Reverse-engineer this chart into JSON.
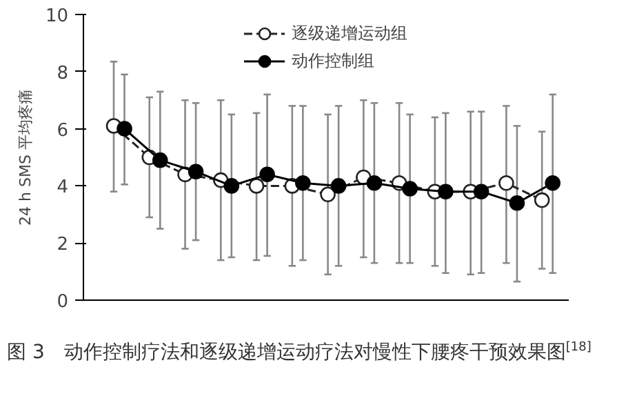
{
  "chart_data": {
    "type": "line",
    "title": "图 3　动作控制疗法和逐级递增运动疗法对慢性下腰疼干预效果图$^{[18]}$",
    "ylabel": "24 h SMS 平均疼痛",
    "categories": [
      null,
      null,
      null,
      null,
      null,
      null,
      null,
      null,
      null,
      null,
      null,
      null,
      null
    ],
    "ylim": [
      0,
      10
    ],
    "yticks": [
      0,
      2,
      4,
      6,
      8,
      10
    ],
    "grid": false,
    "legend": "top",
    "marker": "circle",
    "series": [
      {
        "name": "逐级递增运动组",
        "color": "#222222",
        "line_style": "dashed",
        "values": [
          6.1,
          5.0,
          4.4,
          4.2,
          4.0,
          4.0,
          3.7,
          4.3,
          4.1,
          3.8,
          3.8,
          4.1,
          3.5
        ],
        "errors": [
          [
            3.8,
            8.35
          ],
          [
            2.9,
            7.1
          ],
          [
            1.8,
            7.0
          ],
          [
            1.4,
            7.0
          ],
          [
            1.4,
            6.55
          ],
          [
            1.2,
            6.8
          ],
          [
            0.9,
            6.5
          ],
          [
            1.5,
            7.0
          ],
          [
            1.3,
            6.9
          ],
          [
            1.2,
            6.4
          ],
          [
            0.9,
            6.6
          ],
          [
            1.3,
            6.8
          ],
          [
            1.1,
            5.9
          ]
        ]
      },
      {
        "name": "动作控制组",
        "color": "#000000",
        "line_style": "solid",
        "values": [
          6.0,
          4.9,
          4.5,
          4.0,
          4.4,
          4.1,
          4.0,
          4.1,
          3.9,
          3.8,
          3.8,
          3.4,
          4.1
        ],
        "errors": [
          [
            4.05,
            7.9
          ],
          [
            2.5,
            7.3
          ],
          [
            2.1,
            6.9
          ],
          [
            1.5,
            6.5
          ],
          [
            1.55,
            7.2
          ],
          [
            1.4,
            6.8
          ],
          [
            1.2,
            6.8
          ],
          [
            1.3,
            6.9
          ],
          [
            1.3,
            6.5
          ],
          [
            0.95,
            6.55
          ],
          [
            0.95,
            6.6
          ],
          [
            0.65,
            6.1
          ],
          [
            0.95,
            7.2
          ]
        ]
      }
    ]
  }
}
